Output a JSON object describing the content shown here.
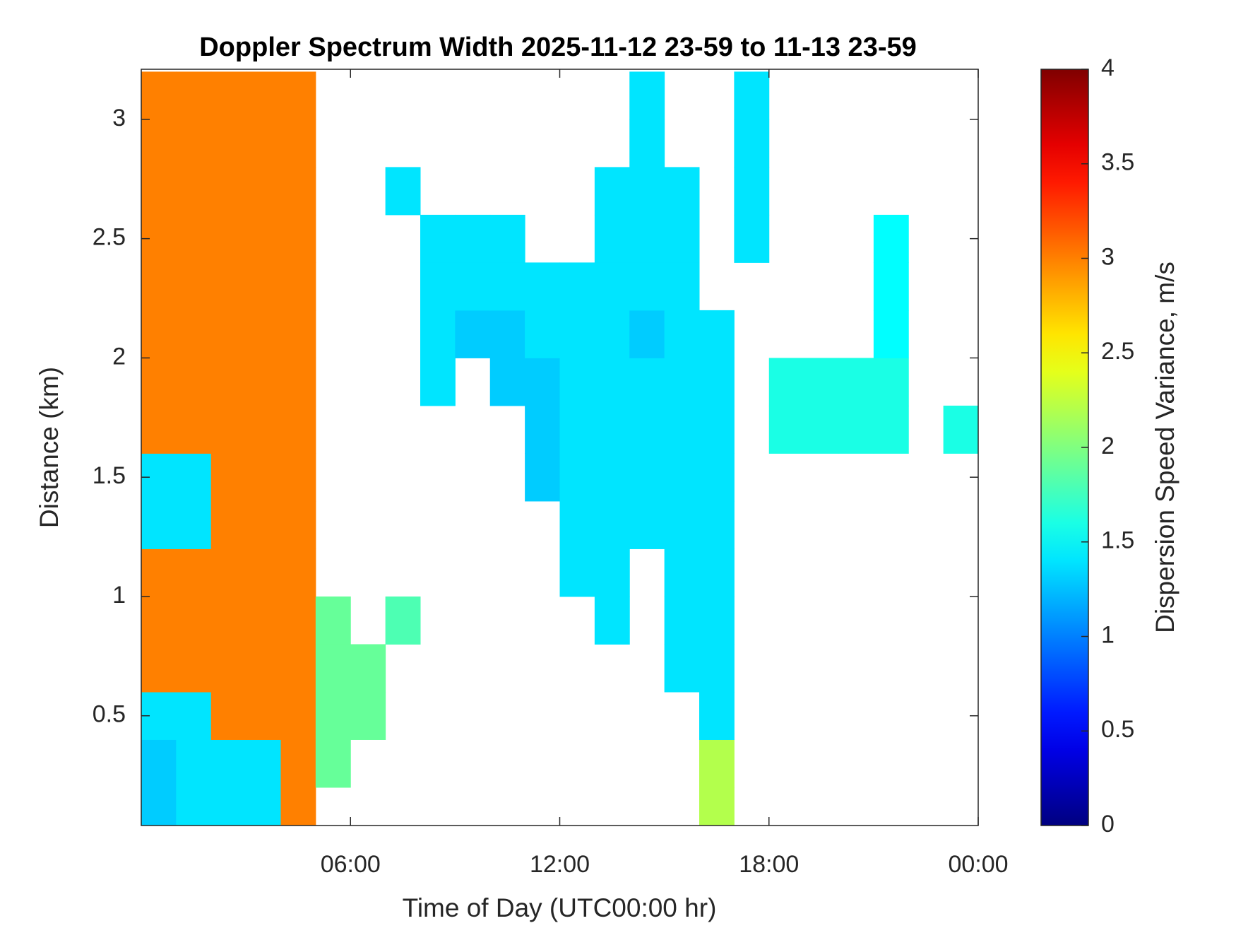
{
  "chart_data": {
    "type": "heatmap",
    "title": "Doppler Spectrum Width 2025-11-12 23-59 to 11-13 23-59",
    "x_label": "Time of Day (UTC00:00 hr)",
    "y_label": "Distance (km)",
    "colorbar_label": "Dispersion Speed Variance, m/s",
    "colormap": "jet",
    "x_edges": [
      0,
      1,
      2,
      3,
      4,
      5,
      6,
      7,
      8,
      9,
      10,
      11,
      12,
      13,
      14,
      15,
      16,
      17,
      18,
      19,
      20,
      21,
      22,
      23,
      24
    ],
    "y_edges": [
      0,
      0.2,
      0.4,
      0.6,
      0.8,
      1,
      1.2,
      1.4,
      1.6,
      1.8,
      2,
      2.2,
      2.4,
      2.6,
      2.8,
      3,
      3.2
    ],
    "values": [
      [
        1.3,
        1.4,
        1.4,
        1.4,
        3,
        null,
        null,
        null,
        null,
        null,
        null,
        null,
        null,
        null,
        null,
        null,
        2.2,
        null,
        null,
        null,
        null,
        null,
        null,
        null
      ],
      [
        1.3,
        1.4,
        1.4,
        1.4,
        3,
        1.9,
        null,
        null,
        null,
        null,
        null,
        null,
        null,
        null,
        null,
        null,
        2.2,
        null,
        null,
        null,
        null,
        null,
        null,
        null
      ],
      [
        1.4,
        1.4,
        3,
        3,
        3,
        1.9,
        1.9,
        null,
        null,
        null,
        null,
        null,
        null,
        null,
        null,
        null,
        1.4,
        null,
        null,
        null,
        null,
        null,
        null,
        null
      ],
      [
        3,
        3,
        3,
        3,
        3,
        1.9,
        1.9,
        null,
        null,
        null,
        null,
        null,
        null,
        null,
        null,
        1.4,
        1.4,
        null,
        null,
        null,
        null,
        null,
        null,
        null
      ],
      [
        3,
        3,
        3,
        3,
        3,
        1.9,
        null,
        1.8,
        null,
        null,
        null,
        null,
        null,
        1.4,
        null,
        1.4,
        1.4,
        null,
        null,
        null,
        null,
        null,
        null,
        null
      ],
      [
        3,
        3,
        3,
        3,
        3,
        null,
        null,
        null,
        null,
        null,
        null,
        null,
        1.4,
        1.4,
        null,
        1.4,
        1.4,
        null,
        null,
        null,
        null,
        null,
        null,
        null
      ],
      [
        1.4,
        1.4,
        3,
        3,
        3,
        null,
        null,
        null,
        null,
        null,
        null,
        null,
        1.4,
        1.4,
        1.4,
        1.4,
        1.4,
        null,
        null,
        null,
        null,
        null,
        null,
        null
      ],
      [
        1.4,
        1.4,
        3,
        3,
        3,
        null,
        null,
        null,
        null,
        null,
        null,
        1.3,
        1.4,
        1.4,
        1.4,
        1.4,
        1.4,
        null,
        null,
        null,
        null,
        null,
        null,
        null
      ],
      [
        3,
        3,
        3,
        3,
        3,
        null,
        null,
        null,
        null,
        null,
        null,
        1.3,
        1.4,
        1.4,
        1.4,
        1.4,
        1.4,
        null,
        1.6,
        1.6,
        1.6,
        1.6,
        null,
        1.6
      ],
      [
        3,
        3,
        3,
        3,
        3,
        null,
        null,
        null,
        1.4,
        null,
        1.3,
        1.3,
        1.4,
        1.4,
        1.4,
        1.4,
        1.4,
        null,
        1.6,
        1.6,
        1.6,
        1.6,
        null,
        null
      ],
      [
        3,
        3,
        3,
        3,
        3,
        null,
        null,
        null,
        1.4,
        1.3,
        1.3,
        1.4,
        1.4,
        1.4,
        1.3,
        1.4,
        1.4,
        null,
        null,
        null,
        null,
        1.5,
        null,
        null
      ],
      [
        3,
        3,
        3,
        3,
        3,
        null,
        null,
        null,
        1.4,
        1.4,
        1.4,
        1.4,
        1.4,
        1.4,
        1.4,
        1.4,
        null,
        null,
        null,
        null,
        null,
        1.5,
        null,
        null
      ],
      [
        3,
        3,
        3,
        3,
        3,
        null,
        null,
        null,
        1.4,
        1.4,
        1.4,
        null,
        null,
        1.4,
        1.4,
        1.4,
        null,
        1.4,
        null,
        null,
        null,
        1.5,
        null,
        null
      ],
      [
        3,
        3,
        3,
        3,
        3,
        null,
        null,
        1.4,
        null,
        null,
        null,
        null,
        null,
        1.4,
        1.4,
        1.4,
        null,
        1.4,
        null,
        null,
        null,
        null,
        null,
        null
      ],
      [
        3,
        3,
        3,
        3,
        3,
        null,
        null,
        null,
        null,
        null,
        null,
        null,
        null,
        null,
        1.4,
        null,
        null,
        1.4,
        null,
        null,
        null,
        null,
        null,
        null
      ],
      [
        3,
        3,
        3,
        3,
        3,
        null,
        null,
        null,
        null,
        null,
        null,
        null,
        null,
        null,
        1.4,
        null,
        null,
        1.4,
        null,
        null,
        null,
        null,
        null,
        null
      ]
    ],
    "xlim": [
      0,
      24
    ],
    "xticks": [
      {
        "value": 6,
        "label": "06:00"
      },
      {
        "value": 12,
        "label": "12:00"
      },
      {
        "value": 18,
        "label": "18:00"
      },
      {
        "value": 24,
        "label": "00:00"
      }
    ],
    "ylim": [
      0.04,
      3.21
    ],
    "yticks": [
      0.5,
      1,
      1.5,
      2,
      2.5,
      3
    ],
    "clim": [
      0,
      4
    ],
    "cticks": [
      0,
      0.5,
      1,
      1.5,
      2,
      2.5,
      3,
      3.5,
      4
    ]
  }
}
